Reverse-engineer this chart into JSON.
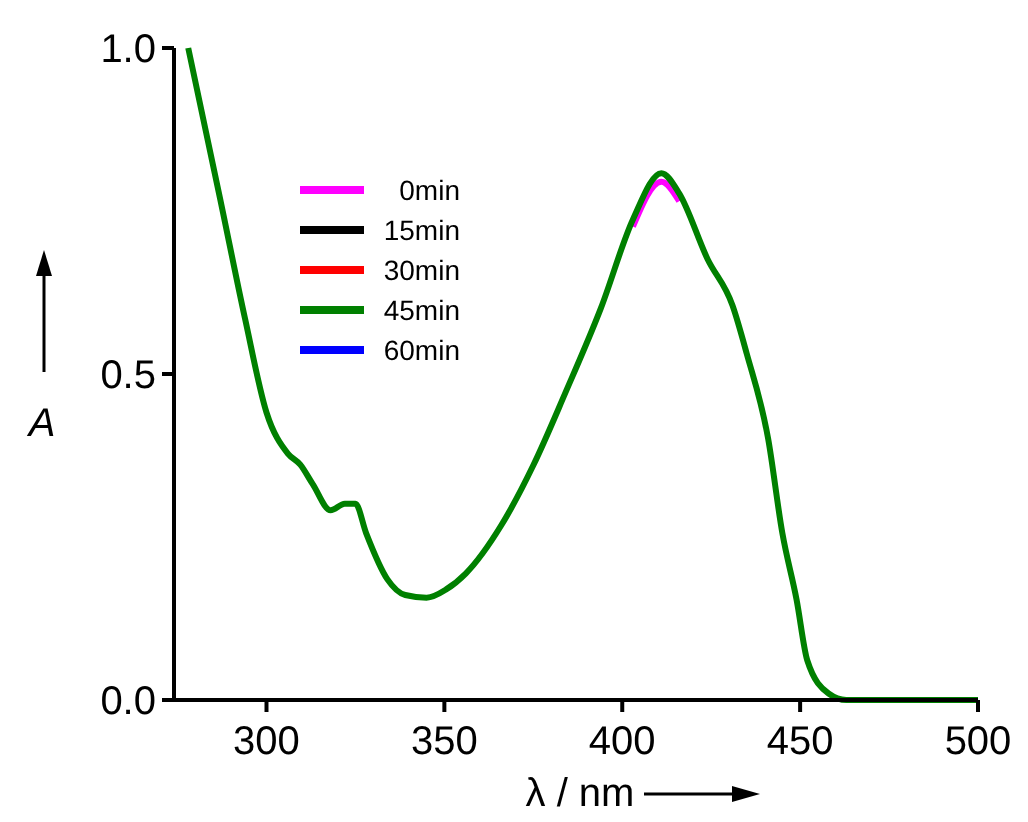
{
  "chart_data": {
    "type": "line",
    "xlabel": "λ / nm",
    "ylabel": "A",
    "xlim": [
      274,
      500
    ],
    "ylim": [
      0,
      1
    ],
    "xticks": [
      300,
      350,
      400,
      450,
      500
    ],
    "yticks": [
      {
        "value": 0,
        "label": "0.0"
      },
      {
        "value": 0.5,
        "label": "0.5"
      },
      {
        "value": 1,
        "label": "1.0"
      }
    ],
    "legend": "top left",
    "grid": false,
    "line_style": "solid",
    "marker": "none",
    "x": [
      278,
      287,
      294,
      300,
      306,
      309.5,
      313,
      318,
      322,
      325,
      328,
      334,
      339,
      345,
      350.6,
      356,
      366,
      375,
      384,
      394,
      403,
      411,
      416,
      424,
      431,
      435,
      441,
      445,
      449,
      452,
      458,
      463,
      500
    ],
    "series": [
      {
        "name": "0min",
        "color": "#ff00ff",
        "values": [
          null,
          null,
          null,
          null,
          null,
          null,
          null,
          null,
          null,
          null,
          null,
          null,
          null,
          null,
          null,
          null,
          null,
          null,
          null,
          null,
          0.726,
          0.795,
          0.765,
          null,
          null,
          null,
          null,
          null,
          null,
          null,
          null,
          null,
          null
        ]
      },
      {
        "name": "15min",
        "color": "#000000",
        "values": [
          null,
          null,
          null,
          null,
          null,
          null,
          null,
          null,
          null,
          null,
          null,
          null,
          null,
          null,
          null,
          null,
          null,
          null,
          null,
          null,
          null,
          null,
          null,
          null,
          null,
          null,
          null,
          null,
          null,
          null,
          null,
          null,
          null
        ]
      },
      {
        "name": "30min",
        "color": "#ff0000",
        "values": [
          null,
          null,
          null,
          null,
          null,
          null,
          null,
          null,
          null,
          null,
          null,
          null,
          null,
          null,
          null,
          null,
          null,
          null,
          null,
          null,
          null,
          null,
          null,
          null,
          null,
          null,
          null,
          null,
          null,
          null,
          null,
          null,
          null
        ]
      },
      {
        "name": "45min",
        "color": "#008000",
        "values": [
          1.0,
          0.768,
          0.584,
          0.441,
          0.378,
          0.361,
          0.331,
          0.291,
          0.301,
          0.301,
          0.256,
          0.185,
          0.161,
          0.157,
          0.17,
          0.194,
          0.268,
          0.36,
          0.471,
          0.601,
          0.737,
          0.808,
          0.777,
          0.676,
          0.605,
          0.531,
          0.401,
          0.256,
          0.154,
          0.061,
          0.01,
          0.0,
          0.0
        ]
      },
      {
        "name": "60min",
        "color": "#0000ff",
        "values": [
          null,
          null,
          null,
          null,
          null,
          null,
          null,
          null,
          null,
          null,
          null,
          null,
          null,
          null,
          null,
          null,
          null,
          null,
          null,
          null,
          null,
          null,
          null,
          null,
          null,
          null,
          null,
          null,
          null,
          null,
          null,
          null,
          null
        ]
      }
    ]
  }
}
